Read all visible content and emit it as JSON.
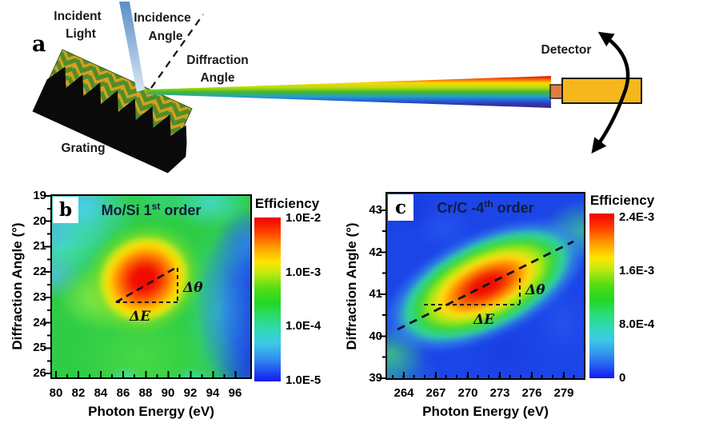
{
  "panel_a": {
    "label": "a",
    "incident_light_line1": "Incident",
    "incident_light_line2": "Light",
    "incidence_angle_line1": "Incidence",
    "incidence_angle_line2": "Angle",
    "diffraction_angle_line1": "Diffraction",
    "diffraction_angle_line2": "Angle",
    "grating_label": "Grating",
    "detector_label": "Detector"
  },
  "panel_b": {
    "label": "b",
    "title_prefix": "Mo/Si 1",
    "title_sup": "st",
    "title_suffix": " order",
    "xlabel": "Photon Energy (eV)",
    "ylabel": "Diffraction Angle (°)",
    "x_ticks": [
      "80",
      "82",
      "84",
      "86",
      "88",
      "90",
      "92",
      "94",
      "96"
    ],
    "y_ticks": [
      "19",
      "20",
      "21",
      "22",
      "23",
      "24",
      "25",
      "26"
    ],
    "colorbar_title": "Efficiency",
    "colorbar_labels": [
      "1.0E-2",
      "1.0E-3",
      "1.0E-4",
      "1.0E-5"
    ],
    "ann_dtheta": "Δθ",
    "ann_dE": "ΔE"
  },
  "panel_c": {
    "label": "c",
    "title_prefix": "Cr/C -4",
    "title_sup": "th",
    "title_suffix": " order",
    "xlabel": "Photon Energy (eV)",
    "ylabel": "Diffraction Angle (°)",
    "x_ticks": [
      "264",
      "267",
      "270",
      "273",
      "276",
      "279"
    ],
    "y_ticks": [
      "43",
      "42",
      "41",
      "40",
      "39"
    ],
    "colorbar_title": "Efficiency",
    "colorbar_labels": [
      "2.4E-3",
      "1.6E-3",
      "8.0E-4",
      "0"
    ],
    "ann_dtheta": "Δθ",
    "ann_dE": "ΔE"
  },
  "chart_data": [
    {
      "type": "heatmap",
      "panel": "b",
      "title": "Mo/Si 1st order",
      "xlabel": "Photon Energy (eV)",
      "ylabel": "Diffraction Angle (°)",
      "x_ticks": [
        80,
        82,
        84,
        86,
        88,
        90,
        92,
        94,
        96
      ],
      "x_range": [
        79.5,
        97.5
      ],
      "y_ticks": [
        19,
        20,
        21,
        22,
        23,
        24,
        25,
        26
      ],
      "y_range": [
        18.9,
        26.2
      ],
      "y_axis_top_to_bottom": true,
      "colorbar": {
        "title": "Efficiency",
        "scale": "log",
        "tick_labels": [
          "1.0E-2",
          "1.0E-3",
          "1.0E-4",
          "1.0E-5"
        ],
        "min": 1e-05,
        "max": 0.01
      },
      "peak": {
        "photon_energy_eV": 88,
        "diffraction_angle_deg": 22.2,
        "efficiency": "~1.0E-2"
      },
      "features": [
        "red/orange elliptical peak tilted along dispersion direction centered near (88 eV, 22.2°)",
        "broad green background (~1E-3) over most of the map",
        "cyan and light-blue patches in top-left corner and along left edge",
        "bright yellow-green secondary spot near (83.5 eV, 23.7°)",
        "dark blue low-efficiency band at 93–97 eV for angles 21–26°"
      ],
      "annotations": [
        "dashed dispersion line through peak",
        "Δθ vertical span",
        "ΔE horizontal span"
      ]
    },
    {
      "type": "heatmap",
      "panel": "c",
      "title": "Cr/C -4th order",
      "xlabel": "Photon Energy (eV)",
      "ylabel": "Diffraction Angle (°)",
      "x_ticks": [
        264,
        267,
        270,
        273,
        276,
        279
      ],
      "x_range": [
        262.3,
        281
      ],
      "y_ticks": [
        39,
        40,
        41,
        42,
        43
      ],
      "y_range": [
        39,
        43.4
      ],
      "y_axis_top_to_bottom": false,
      "colorbar": {
        "title": "Efficiency",
        "scale": "linear",
        "tick_labels": [
          "2.4E-3",
          "1.6E-3",
          "8.0E-4",
          "0"
        ],
        "min": 0,
        "max": 0.0024
      },
      "peak": {
        "photon_energy_eV": 271.5,
        "diffraction_angle_deg": 41.2,
        "efficiency": "~2.4E-3"
      },
      "features": [
        "deep blue (~0) background",
        "elongated tilted red/orange ridge from about (266 eV, 40.5°) to (276 eV, 41.6°)",
        "green halo around ridge reaching lower-left and upper-right corners"
      ],
      "annotations": [
        "dashed dispersion line along ridge",
        "Δθ vertical span",
        "ΔE horizontal span"
      ]
    }
  ]
}
